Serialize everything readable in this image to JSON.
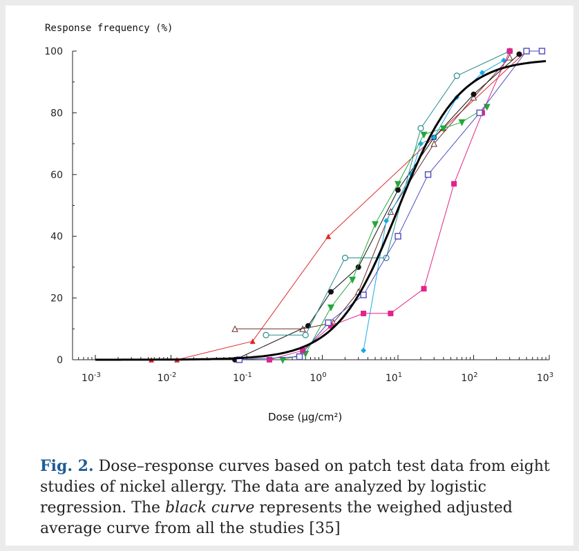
{
  "chart_data": {
    "type": "line",
    "ylabel": "Response frequency (%)",
    "xlabel": "Dose (µg/cm²)",
    "x_scale": "log",
    "xlim": [
      0.0005,
      1000
    ],
    "ylim": [
      0,
      100
    ],
    "y_ticks": [
      0,
      20,
      40,
      60,
      80,
      100
    ],
    "x_ticks": [
      {
        "value": 0.001,
        "base": "10",
        "exp": "-3"
      },
      {
        "value": 0.01,
        "base": "10",
        "exp": "-2"
      },
      {
        "value": 0.1,
        "base": "10",
        "exp": "-1"
      },
      {
        "value": 1,
        "base": "10",
        "exp": "0"
      },
      {
        "value": 10,
        "base": "10",
        "exp": "1"
      },
      {
        "value": 100,
        "base": "10",
        "exp": "2"
      },
      {
        "value": 1000,
        "base": "10",
        "exp": "3"
      }
    ],
    "series": [
      {
        "color": "#e02a2a",
        "marker": "triangle",
        "x": [
          0.0055,
          0.012,
          0.12,
          1.2,
          40,
          500
        ],
        "y": [
          0,
          0,
          6,
          40,
          75,
          100
        ]
      },
      {
        "color": "#6a2a2a",
        "marker": "triangle-open",
        "x": [
          0.07,
          0.55,
          1.4,
          3.0,
          8,
          30,
          100,
          300
        ],
        "y": [
          10,
          10,
          12,
          22,
          48,
          70,
          85,
          98
        ]
      },
      {
        "color": "#111111",
        "marker": "circle",
        "x": [
          0.07,
          0.65,
          1.3,
          3.0,
          10,
          30,
          100,
          400
        ],
        "y": [
          0,
          11,
          22,
          30,
          55,
          72,
          86,
          99
        ]
      },
      {
        "color": "#2a8a8a",
        "marker": "circle-open",
        "x": [
          0.18,
          0.6,
          2.0,
          7.0,
          20,
          60,
          300
        ],
        "y": [
          8,
          8,
          33,
          33,
          75,
          92,
          100
        ]
      },
      {
        "color": "#18a8e8",
        "marker": "diamond",
        "x": [
          3.5,
          7,
          15,
          20,
          30,
          60,
          130,
          250
        ],
        "y": [
          3,
          45,
          60,
          70,
          72,
          85,
          93,
          97
        ]
      },
      {
        "color": "#22a83a",
        "marker": "triangle-down",
        "x": [
          0.3,
          0.6,
          1.3,
          2.5,
          5,
          10,
          22,
          40,
          70,
          150
        ],
        "y": [
          0,
          2,
          17,
          26,
          44,
          57,
          73,
          75,
          77,
          82
        ]
      },
      {
        "color": "#e0248a",
        "marker": "square",
        "x": [
          0.2,
          0.55,
          1.3,
          3.5,
          8,
          22,
          55,
          130,
          300
        ],
        "y": [
          0,
          3,
          11,
          15,
          15,
          23,
          57,
          80,
          100
        ]
      },
      {
        "color": "#4a4abf",
        "marker": "square-open",
        "x": [
          0.08,
          0.5,
          1.2,
          3.5,
          10,
          25,
          120,
          500,
          800
        ],
        "y": [
          0,
          1,
          12,
          21,
          40,
          60,
          80,
          100,
          100
        ]
      }
    ],
    "average_curve": {
      "color": "#000000",
      "ec50": 10,
      "hill": 1.08,
      "max": 97.5,
      "x_start": 0.001,
      "x_end": 900
    }
  },
  "caption": {
    "fig_label": "Fig. 2.",
    "text_before": " Dose–response curves based on patch test data from eight studies of nickel allergy. The data are analyzed by logistic regression. The ",
    "emphasis": "black curve",
    "text_after": " represents the weighed adjusted average curve from all the studies [35]"
  }
}
